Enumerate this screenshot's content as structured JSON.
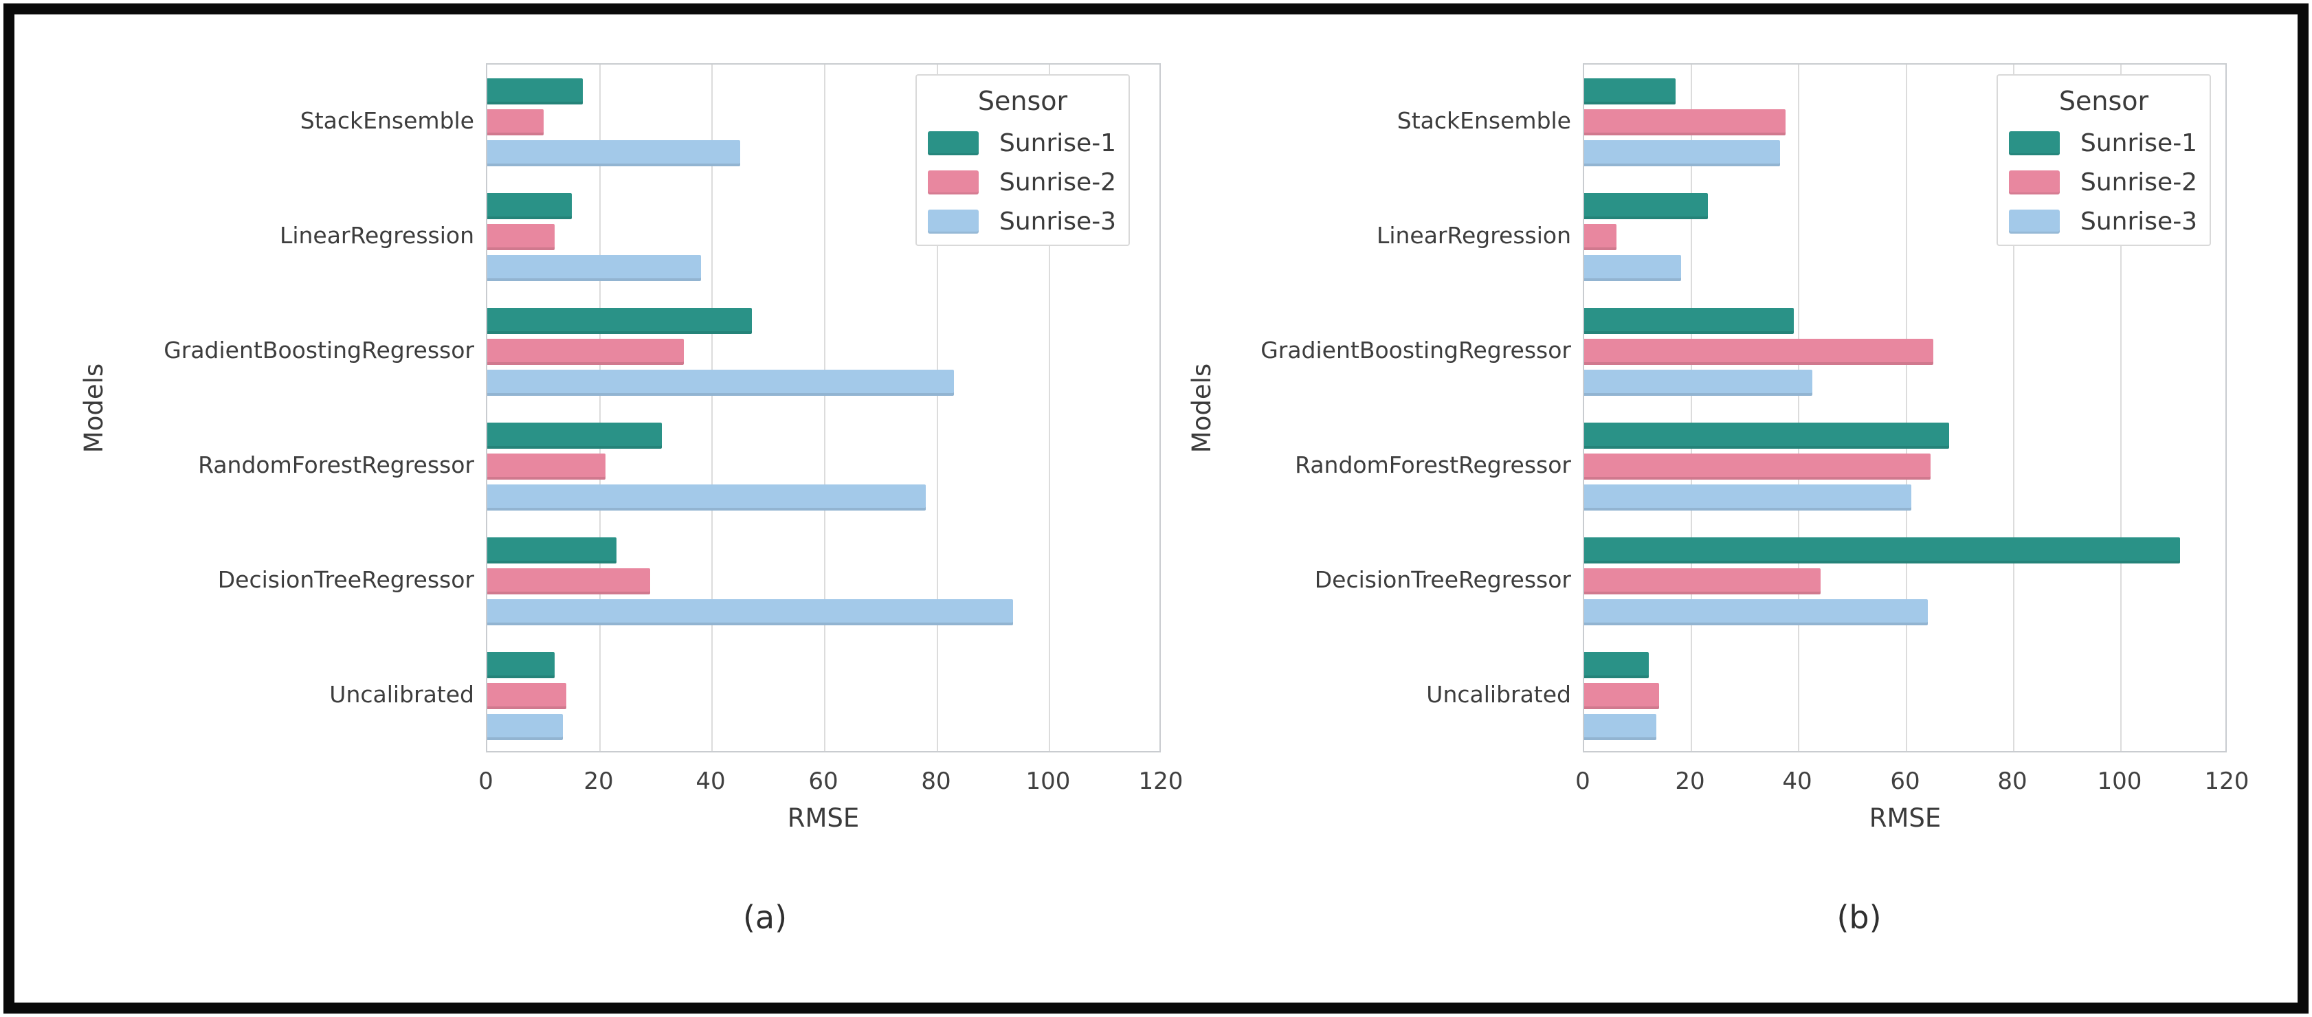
{
  "window": {
    "background": "#ffffff",
    "frame_border_color": "#0a0a0a"
  },
  "colors": {
    "sunrise1": "#2a9287",
    "sunrise2": "#e8879f",
    "sunrise3": "#a3c9e9",
    "gridline": "#dcdcdc",
    "spine": "#c9ccd0",
    "text": "#3b3b3b"
  },
  "chart_data": [
    {
      "id": "a",
      "type": "bar",
      "orientation": "horizontal",
      "caption": "(a)",
      "xlabel": "RMSE",
      "ylabel": "Models",
      "xlim": [
        0,
        120
      ],
      "xticks": [
        0,
        20,
        40,
        60,
        80,
        100,
        120
      ],
      "grid": true,
      "legend": {
        "title": "Sensor",
        "position": "upper right"
      },
      "categories": [
        "StackEnsemble",
        "LinearRegression",
        "GradientBoostingRegressor",
        "RandomForestRegressor",
        "DecisionTreeRegressor",
        "Uncalibrated"
      ],
      "series": [
        {
          "name": "Sunrise-1",
          "color": "#2a9287",
          "values": [
            17,
            15,
            47,
            31,
            23,
            12
          ]
        },
        {
          "name": "Sunrise-2",
          "color": "#e8879f",
          "values": [
            10,
            12,
            35,
            21,
            29,
            14
          ]
        },
        {
          "name": "Sunrise-3",
          "color": "#a3c9e9",
          "values": [
            45,
            38,
            83,
            78,
            93.5,
            13.5
          ]
        }
      ]
    },
    {
      "id": "b",
      "type": "bar",
      "orientation": "horizontal",
      "caption": "(b)",
      "xlabel": "RMSE",
      "ylabel": "Models",
      "xlim": [
        0,
        120
      ],
      "xticks": [
        0,
        20,
        40,
        60,
        80,
        100,
        120
      ],
      "grid": true,
      "legend": {
        "title": "Sensor",
        "position": "upper right"
      },
      "categories": [
        "StackEnsemble",
        "LinearRegression",
        "GradientBoostingRegressor",
        "RandomForestRegressor",
        "DecisionTreeRegressor",
        "Uncalibrated"
      ],
      "series": [
        {
          "name": "Sunrise-1",
          "color": "#2a9287",
          "values": [
            17,
            23,
            39,
            68,
            111,
            12
          ]
        },
        {
          "name": "Sunrise-2",
          "color": "#e8879f",
          "values": [
            37.5,
            6,
            65,
            64.5,
            44,
            14
          ]
        },
        {
          "name": "Sunrise-3",
          "color": "#a3c9e9",
          "values": [
            36.5,
            18,
            42.5,
            61,
            64,
            13.5
          ]
        }
      ]
    }
  ]
}
